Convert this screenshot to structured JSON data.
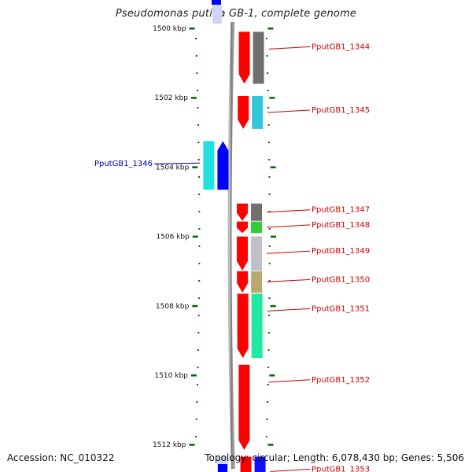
{
  "title": "Pseudomonas putida GB-1, complete genome",
  "footer": {
    "accession": "Accession: NC_010322",
    "summary": "Topology: circular; Length: 6,078,430 bp; Genes: 5,506"
  },
  "ruler": {
    "ticks": [
      {
        "kbp": 1500,
        "label": "1500 kbp"
      },
      {
        "kbp": 1502,
        "label": "1502 kbp"
      },
      {
        "kbp": 1504,
        "label": "1504 kbp"
      },
      {
        "kbp": 1506,
        "label": "1506 kbp"
      },
      {
        "kbp": 1508,
        "label": "1508 kbp"
      },
      {
        "kbp": 1510,
        "label": "1510 kbp"
      },
      {
        "kbp": 1512,
        "label": "1512 kbp"
      }
    ]
  },
  "genes": [
    {
      "name": "PputGB1_1344",
      "start_kbp": 1500.1,
      "end_kbp": 1501.6,
      "strand": "forward",
      "cog_color": "#707070",
      "label_color": "#cc0000"
    },
    {
      "name": "PputGB1_1345",
      "start_kbp": 1501.95,
      "end_kbp": 1502.9,
      "strand": "forward",
      "cog_color": "#30c8d8",
      "label_color": "#cc0000"
    },
    {
      "name": "PputGB1_1346",
      "start_kbp": 1503.25,
      "end_kbp": 1504.65,
      "strand": "reverse",
      "cog_color": "#20e0e0",
      "label_color": "#0000aa"
    },
    {
      "name": "PputGB1_1347",
      "start_kbp": 1505.05,
      "end_kbp": 1505.55,
      "strand": "forward",
      "cog_color": "#707070",
      "label_color": "#cc0000"
    },
    {
      "name": "PputGB1_1348",
      "start_kbp": 1505.57,
      "end_kbp": 1505.9,
      "strand": "forward",
      "cog_color": "#33cc33",
      "label_color": "#cc0000"
    },
    {
      "name": "PputGB1_1349",
      "start_kbp": 1506.0,
      "end_kbp": 1506.98,
      "strand": "forward",
      "cog_color": "#c0c0c8",
      "label_color": "#cc0000"
    },
    {
      "name": "PputGB1_1350",
      "start_kbp": 1507.0,
      "end_kbp": 1507.62,
      "strand": "forward",
      "cog_color": "#b8a870",
      "label_color": "#cc0000"
    },
    {
      "name": "PputGB1_1351",
      "start_kbp": 1507.65,
      "end_kbp": 1509.5,
      "strand": "forward",
      "cog_color": "#20e8a0",
      "label_color": "#cc0000"
    },
    {
      "name": "PputGB1_1352",
      "start_kbp": 1509.7,
      "end_kbp": 1512.15,
      "strand": "forward",
      "cog_color": null,
      "label_color": "#cc0000"
    },
    {
      "name": "PputGB1_1353",
      "start_kbp": 1512.35,
      "end_kbp": 1513.2,
      "strand": "forward",
      "cog_color": "#1010ff",
      "label_color": "#cc0000"
    }
  ],
  "colors": {
    "forward_strand": "#ff0000",
    "reverse_strand": "#0000ff",
    "backbone": "#8c8c8c",
    "tick": "#006600",
    "leader_red": "#cc0000",
    "leader_blue": "#0000aa"
  }
}
